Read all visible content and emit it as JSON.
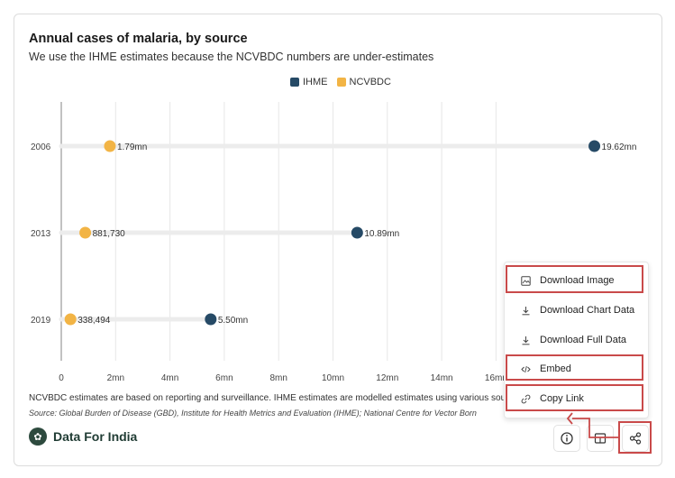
{
  "title": "Annual cases of malaria, by source",
  "subtitle": "We use the IHME estimates because the NCVBDC numbers are under-estimates",
  "legend": [
    {
      "name": "IHME",
      "color": "#264a66"
    },
    {
      "name": "NCVBDC",
      "color": "#f2b445"
    }
  ],
  "chart_data": {
    "type": "scatter",
    "subtype": "dumbbell",
    "categories": [
      "2006",
      "2013",
      "2019"
    ],
    "series": [
      {
        "name": "IHME",
        "values": [
          19620000,
          10890000,
          5500000
        ],
        "labels": [
          "19.62mn",
          "10.89mn",
          "5.50mn"
        ],
        "color": "#264a66"
      },
      {
        "name": "NCVBDC",
        "values": [
          1790000,
          881730,
          338494
        ],
        "labels": [
          "1.79mn",
          "881,730",
          "338,494"
        ],
        "color": "#f2b445"
      }
    ],
    "xlim": [
      0,
      20000000
    ],
    "xticks": [
      0,
      2000000,
      4000000,
      6000000,
      8000000,
      10000000,
      12000000,
      14000000,
      16000000
    ],
    "xtick_labels": [
      "0",
      "2mn",
      "4mn",
      "6mn",
      "8mn",
      "10mn",
      "12mn",
      "14mn",
      "16mn"
    ],
    "grid": true,
    "legend_position": "top-center"
  },
  "note": "NCVBDC estimates are based on reporting and surveillance. IHME estimates are modelled estimates using various sou",
  "source": "Source: Global Burden of Disease (GBD), Institute for Health Metrics and Evaluation (IHME); National Centre for Vector Born",
  "brand": "Data For India",
  "menu": [
    {
      "label": "Download Image",
      "icon": "image-download-icon",
      "highlighted": true
    },
    {
      "label": "Download Chart Data",
      "icon": "download-icon",
      "highlighted": false
    },
    {
      "label": "Download Full Data",
      "icon": "download-icon",
      "highlighted": false
    },
    {
      "label": "Embed",
      "icon": "code-icon",
      "highlighted": true
    },
    {
      "label": "Copy Link",
      "icon": "link-icon",
      "highlighted": true
    }
  ]
}
